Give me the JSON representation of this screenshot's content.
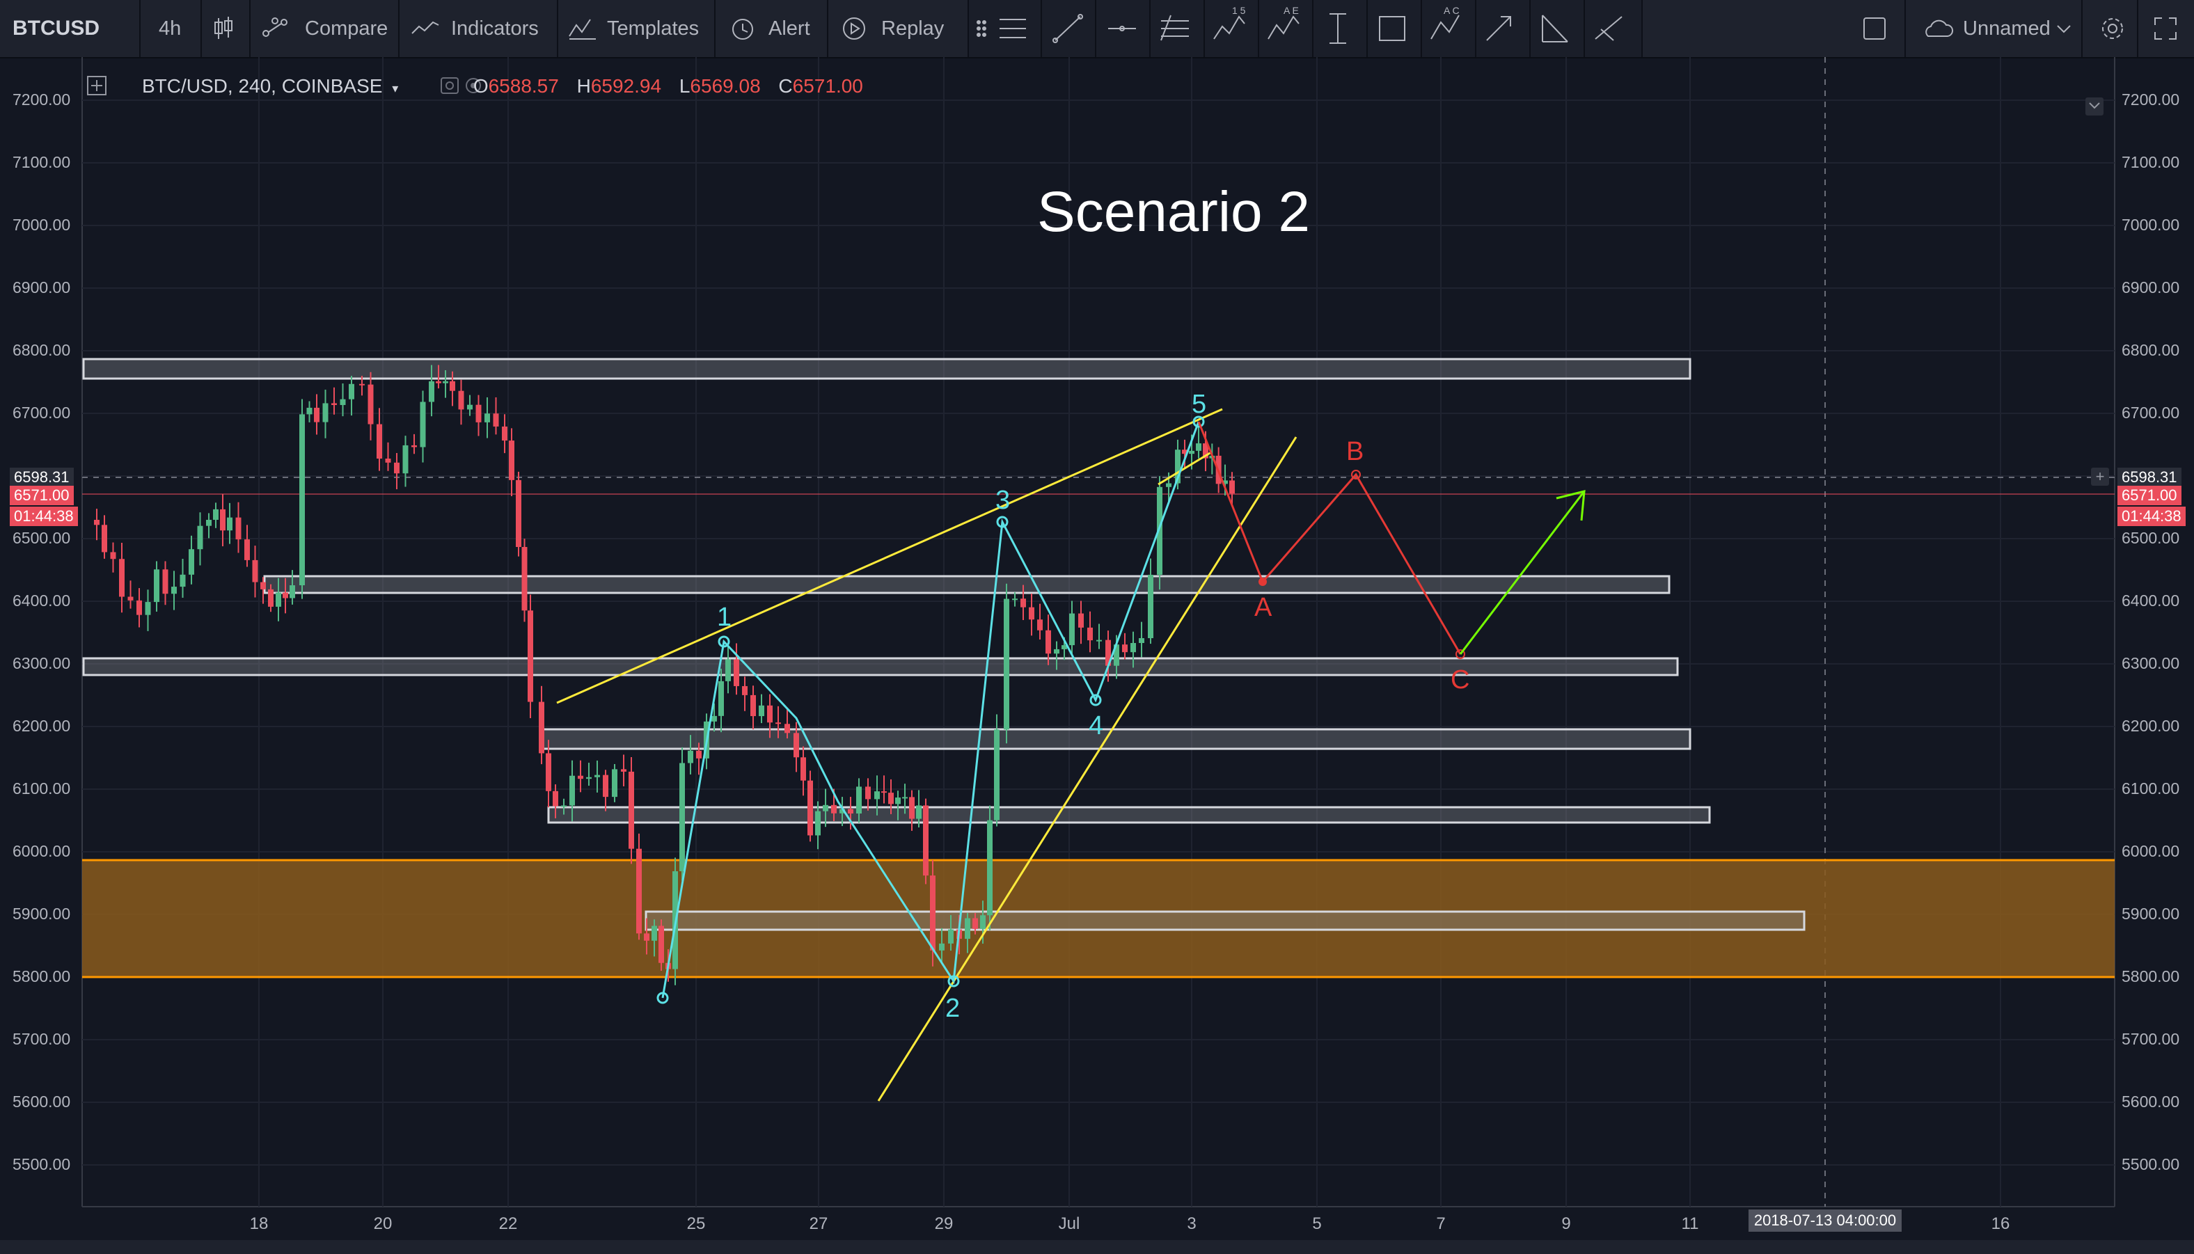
{
  "toolbar": {
    "symbol": "BTCUSD",
    "interval": "4h",
    "compare_label": "Compare",
    "indicators_label": "Indicators",
    "templates_label": "Templates",
    "alert_label": "Alert",
    "replay_label": "Replay",
    "layout_name": "Unnamed"
  },
  "legend": {
    "symbol_info": "BTC/USD, 240, COINBASE",
    "o_label": "O",
    "o_value": "6588.57",
    "h_label": "H",
    "h_value": "6592.94",
    "l_label": "L",
    "l_value": "6569.08",
    "c_label": "C",
    "c_value": "6571.00"
  },
  "chart": {
    "title": "Scenario 2",
    "price_axis": [
      "7200.00",
      "7100.00",
      "7000.00",
      "6900.00",
      "6800.00",
      "6700.00",
      "6600.00",
      "6500.00",
      "6400.00",
      "6300.00",
      "6200.00",
      "6100.00",
      "6000.00",
      "5900.00",
      "5800.00",
      "5700.00",
      "5600.00",
      "5500.00"
    ],
    "time_axis": [
      "18",
      "20",
      "22",
      "25",
      "27",
      "29",
      "Jul",
      "3",
      "5",
      "7",
      "9",
      "11",
      "16"
    ],
    "crosshair_time": "2018-07-13 04:00:00",
    "crosshair_price": "6598.31",
    "last_price": "6571.00",
    "countdown": "01:44:38",
    "wave_labels": [
      "1",
      "2",
      "3",
      "4",
      "5"
    ],
    "correction_labels": [
      "A",
      "B",
      "C"
    ]
  },
  "colors": {
    "background": "#131722",
    "toolbar": "#1e222d",
    "up_candle": "#53b987",
    "down_candle": "#eb4d5c",
    "wave_line": "#5ce1e6",
    "trend_line": "#ffeb3b",
    "correction": "#e53935",
    "target_arrow": "#76ff03",
    "demand_zone": "#8a5a1c",
    "zone_border": "#ff9800"
  }
}
